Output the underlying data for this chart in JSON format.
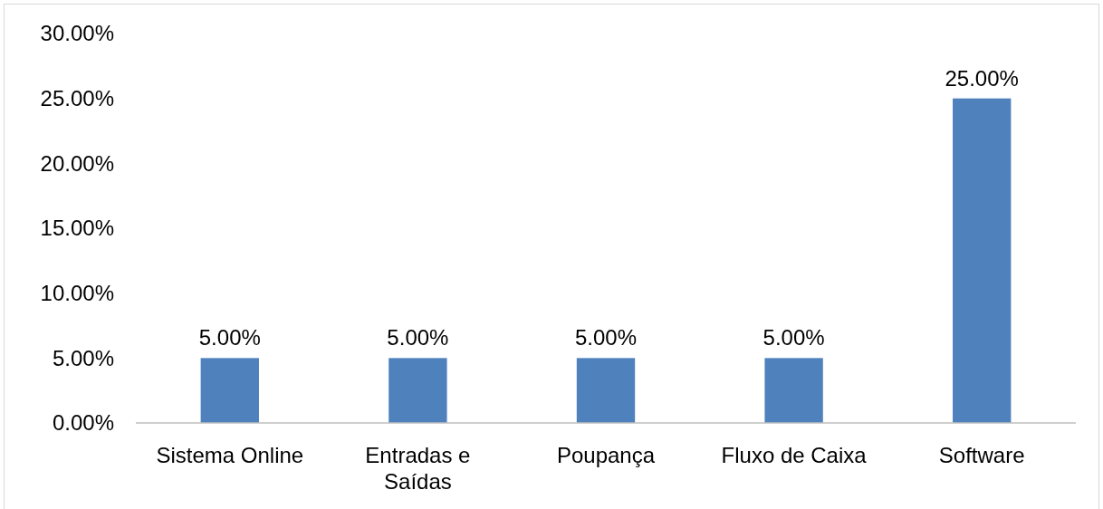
{
  "chart_data": {
    "type": "bar",
    "categories": [
      "Sistema Online",
      "Entradas e Saídas",
      "Poupança",
      "Fluxo de Caixa",
      "Software"
    ],
    "values": [
      5,
      5,
      5,
      5,
      25
    ],
    "value_labels": [
      "5.00%",
      "5.00%",
      "5.00%",
      "5.00%",
      "25.00%"
    ],
    "color": "#4f81bd",
    "ylim": [
      0,
      30
    ],
    "yticks": [
      {
        "value": 0,
        "label": "0.00%"
      },
      {
        "value": 5,
        "label": "5.00%"
      },
      {
        "value": 10,
        "label": "10.00%"
      },
      {
        "value": 15,
        "label": "15.00%"
      },
      {
        "value": 20,
        "label": "20.00%"
      },
      {
        "value": 25,
        "label": "25.00%"
      },
      {
        "value": 30,
        "label": "30.00%"
      }
    ],
    "grid": false
  }
}
